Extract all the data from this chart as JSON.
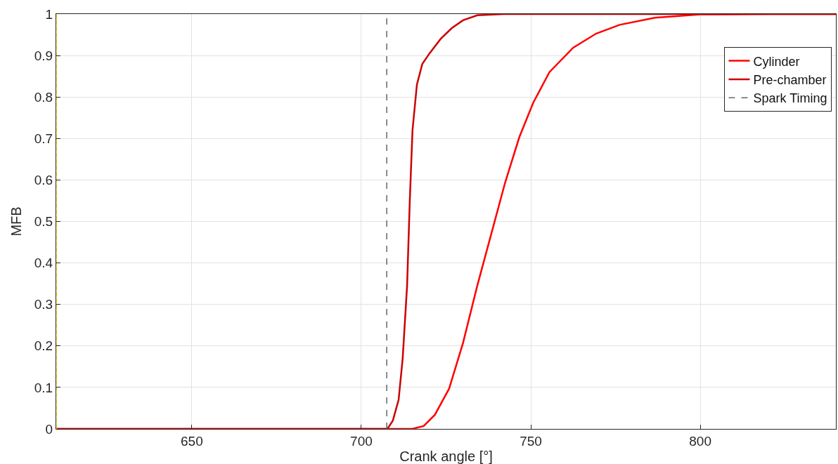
{
  "chart_data": {
    "type": "line",
    "xlabel": "Crank angle [°]",
    "ylabel": "MFB",
    "xlim": [
      610,
      840
    ],
    "xticks": [
      650,
      700,
      750,
      800
    ],
    "ylim": [
      0,
      1
    ],
    "yticks": [
      0,
      0.1,
      0.2,
      0.3,
      0.4,
      0.5,
      0.6,
      0.7,
      0.8,
      0.9,
      1
    ],
    "grid": true,
    "legend": "top right",
    "line_style": "solid",
    "marker": "none",
    "series": [
      {
        "name": "Cylinder",
        "color": "#ff0000",
        "x": [
          610,
          715,
          718.4,
          721.7,
          725.9,
          730,
          734.2,
          738.3,
          742.4,
          746.6,
          750.7,
          755.5,
          762.5,
          769.3,
          776.2,
          786.6,
          800,
          820,
          840
        ],
        "values": [
          0,
          0,
          0.007,
          0.034,
          0.097,
          0.207,
          0.345,
          0.469,
          0.593,
          0.703,
          0.786,
          0.86,
          0.919,
          0.953,
          0.974,
          0.991,
          0.999,
          1,
          1
        ]
      },
      {
        "name": "Pre-chamber",
        "color": "#cc0000",
        "x": [
          610,
          707.7,
          709.3,
          711,
          712.2,
          713.5,
          714.3,
          715.1,
          716.4,
          718,
          720.1,
          723.4,
          726.7,
          730,
          734.2,
          742,
          840
        ],
        "values": [
          0,
          0,
          0.02,
          0.07,
          0.17,
          0.345,
          0.55,
          0.72,
          0.83,
          0.88,
          0.905,
          0.94,
          0.966,
          0.985,
          0.997,
          1,
          1
        ]
      },
      {
        "name": "Spark Timing",
        "color": "#666666",
        "line_style": "dashed",
        "x": [
          707.5,
          707.5
        ],
        "values": [
          0,
          1
        ]
      }
    ],
    "ref_lines": [
      {
        "axis": "x",
        "value": 610,
        "color": "#ffff00",
        "line_style": "dashed"
      }
    ]
  }
}
